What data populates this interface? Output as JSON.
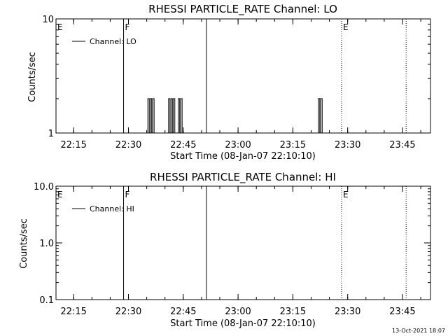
{
  "footer": {
    "timestamp": "13-Oct-2021 18:07"
  },
  "chart_data": [
    {
      "type": "line",
      "title": "RHESSI PARTICLE_RATE Channel: LO",
      "xlabel": "Start Time (08-Jan-07 22:10:10)",
      "ylabel": "Counts/sec",
      "yscale": "log",
      "ylim": [
        1,
        10
      ],
      "y_tick_labels": [
        "1",
        "10"
      ],
      "x_tick_labels": [
        "22:15",
        "22:30",
        "22:45",
        "23:00",
        "23:15",
        "23:30",
        "23:45"
      ],
      "xlim": [
        "22:10:10",
        "23:52:40"
      ],
      "legend": {
        "label": "Channel: LO",
        "placement": "top-left"
      },
      "markers": [
        {
          "label": "E",
          "time": "22:10:10",
          "style": "dotted"
        },
        {
          "label": "F",
          "time": "22:28:40",
          "style": "solid"
        },
        {
          "label": "",
          "time": "22:51:20",
          "style": "solid"
        },
        {
          "label": "E",
          "time": "23:28:20",
          "style": "dotted"
        },
        {
          "label": "",
          "time": "23:46:00",
          "style": "dotted"
        }
      ],
      "series": [
        {
          "values": [
            [
              "22:35:30",
              2
            ],
            [
              "22:36:10",
              2
            ],
            [
              "22:36:50",
              2
            ],
            [
              "22:41:10",
              2
            ],
            [
              "22:41:50",
              2
            ],
            [
              "22:42:30",
              2
            ],
            [
              "22:43:50",
              2
            ],
            [
              "22:44:30",
              2
            ],
            [
              "23:22:10",
              2
            ],
            [
              "23:22:50",
              2
            ]
          ]
        }
      ]
    },
    {
      "type": "line",
      "title": "RHESSI PARTICLE_RATE Channel: HI",
      "xlabel": "Start Time (08-Jan-07 22:10:10)",
      "ylabel": "Counts/sec",
      "yscale": "log",
      "ylim": [
        0.1,
        10
      ],
      "y_tick_labels": [
        "0.1",
        "1.0",
        "10.0"
      ],
      "x_tick_labels": [
        "22:15",
        "22:30",
        "22:45",
        "23:00",
        "23:15",
        "23:30",
        "23:45"
      ],
      "xlim": [
        "22:10:10",
        "23:52:40"
      ],
      "legend": {
        "label": "Channel: HI",
        "placement": "top-left"
      },
      "markers": [
        {
          "label": "E",
          "time": "22:10:10",
          "style": "dotted"
        },
        {
          "label": "F",
          "time": "22:28:40",
          "style": "solid"
        },
        {
          "label": "",
          "time": "22:51:20",
          "style": "solid"
        },
        {
          "label": "E",
          "time": "23:28:20",
          "style": "dotted"
        },
        {
          "label": "",
          "time": "23:46:00",
          "style": "dotted"
        }
      ],
      "series": [
        {
          "values": []
        }
      ]
    }
  ]
}
